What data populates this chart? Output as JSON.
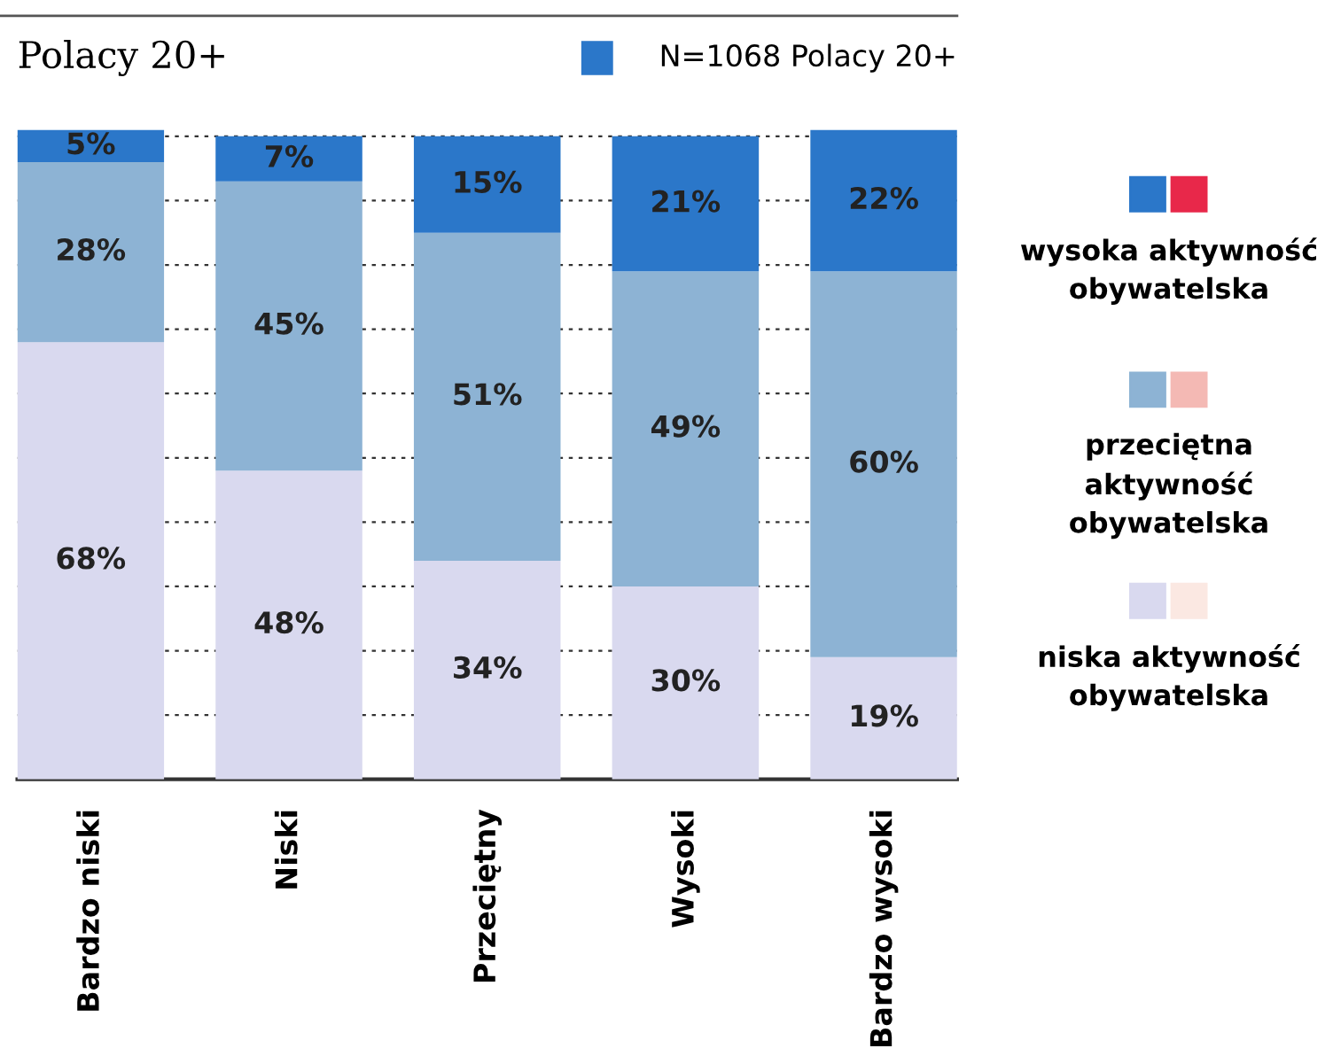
{
  "chart_data": {
    "type": "bar",
    "title": "Polacy 20+",
    "stacked": true,
    "categories": [
      "Bardzo niski",
      "Niski",
      "Przeciętny",
      "Wysoki",
      "Bardzo wysoki"
    ],
    "series": [
      {
        "name": "niska aktywność obywatelska",
        "color": "#d9d9ef",
        "values": [
          68,
          48,
          34,
          30,
          19
        ],
        "value_labels": [
          "68%",
          "48%",
          "34%",
          "30%",
          "19%"
        ]
      },
      {
        "name": "przeciętna aktywność obywatelska",
        "color": "#8db3d4",
        "values": [
          28,
          45,
          51,
          49,
          60
        ],
        "value_labels": [
          "28%",
          "45%",
          "51%",
          "49%",
          "60%"
        ]
      },
      {
        "name": "wysoka aktywność obywatelska",
        "color": "#2b77c9",
        "values": [
          5,
          7,
          15,
          21,
          22
        ],
        "value_labels": [
          "5%",
          "7%",
          "15%",
          "21%",
          "22%"
        ]
      }
    ],
    "ylim": [
      0,
      101
    ],
    "yticks": [
      {
        "value": 0,
        "label": null
      },
      {
        "value": 10,
        "label": null
      },
      {
        "value": 20,
        "label": null
      },
      {
        "value": 30,
        "label": null
      },
      {
        "value": 40,
        "label": null
      },
      {
        "value": 50,
        "label": null
      },
      {
        "value": 60,
        "label": null
      },
      {
        "value": 70,
        "label": null
      },
      {
        "value": 80,
        "label": null
      },
      {
        "value": 90,
        "label": null
      },
      {
        "value": 100,
        "label": null
      }
    ],
    "tick_labels": "x",
    "grid": "y",
    "legend": "right",
    "annotations": [
      "N=1068 Polacy 20+"
    ]
  }
}
